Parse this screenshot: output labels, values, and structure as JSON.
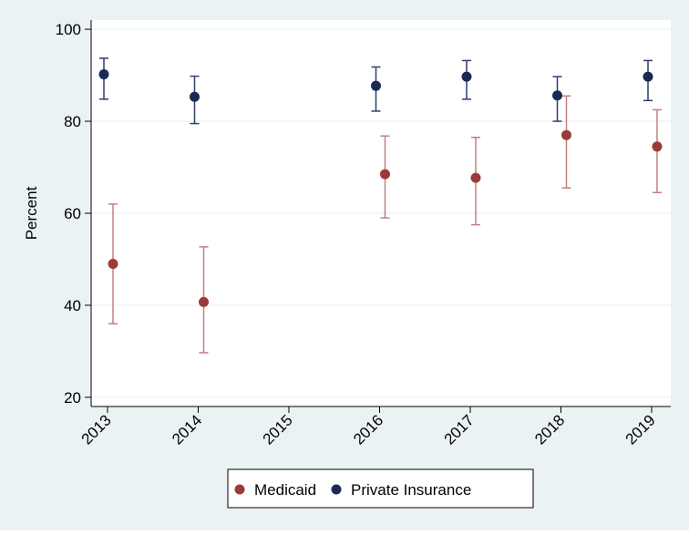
{
  "chart_data": {
    "type": "scatter",
    "title": "",
    "xlabel": "",
    "ylabel": "Percent",
    "ylim": [
      18,
      102
    ],
    "yticks": [
      20,
      40,
      60,
      80,
      100
    ],
    "categories": [
      "2013",
      "2014",
      "2015",
      "2016",
      "2017",
      "2018",
      "2019"
    ],
    "grid": true,
    "legend_position": "bottom",
    "series": [
      {
        "name": "Medicaid",
        "color": "#9b3a3a",
        "errorbar_color": "#c08080",
        "points": [
          {
            "x": "2013",
            "y": 49.0,
            "low": 36.0,
            "high": 62.0
          },
          {
            "x": "2014",
            "y": 40.7,
            "low": 29.7,
            "high": 52.7
          },
          {
            "x": "2016",
            "y": 68.5,
            "low": 59.0,
            "high": 76.8
          },
          {
            "x": "2017",
            "y": 67.7,
            "low": 57.5,
            "high": 76.5
          },
          {
            "x": "2018",
            "y": 77.0,
            "low": 65.5,
            "high": 85.5
          },
          {
            "x": "2019",
            "y": 74.5,
            "low": 64.5,
            "high": 82.5
          }
        ]
      },
      {
        "name": "Private Insurance",
        "color": "#1a2a55",
        "errorbar_color": "#2e3e6a",
        "points": [
          {
            "x": "2013",
            "y": 90.2,
            "low": 84.8,
            "high": 93.7
          },
          {
            "x": "2014",
            "y": 85.3,
            "low": 79.5,
            "high": 89.8
          },
          {
            "x": "2016",
            "y": 87.7,
            "low": 82.2,
            "high": 91.8
          },
          {
            "x": "2017",
            "y": 89.7,
            "low": 84.8,
            "high": 93.2
          },
          {
            "x": "2018",
            "y": 85.6,
            "low": 80.0,
            "high": 89.7
          },
          {
            "x": "2019",
            "y": 89.7,
            "low": 84.5,
            "high": 93.2
          }
        ]
      }
    ],
    "colors": {
      "background": "#eaf2f3",
      "plot_background": "#ffffff",
      "grid": "#e6eef0",
      "axis": "#000000"
    }
  }
}
